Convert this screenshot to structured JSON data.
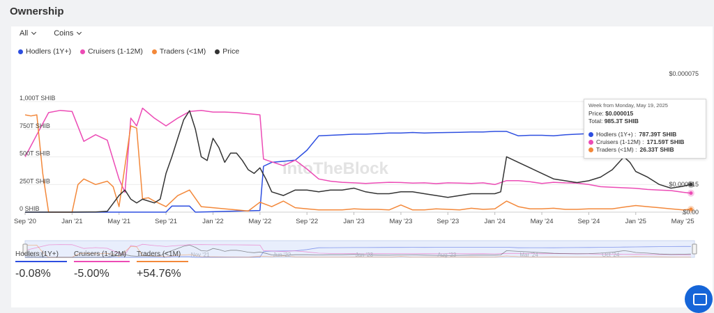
{
  "page": {
    "title": "Ownership"
  },
  "filters": {
    "asset": "All",
    "unit": "Coins"
  },
  "legend": [
    {
      "label": "Hodlers (1Y+)",
      "color": "#2d4ee0"
    },
    {
      "label": "Cruisers (1-12M)",
      "color": "#ec4bb5"
    },
    {
      "label": "Traders (<1M)",
      "color": "#f3883a"
    },
    {
      "label": "Price",
      "color": "#333333"
    }
  ],
  "watermark": "IntoTheBlock",
  "tooltip": {
    "week": "Week from Monday, May 19, 2025",
    "price_label": "Price:",
    "price_value": "$0.000015",
    "total_label": "Total:",
    "total_value": "985.3T SHIB",
    "rows": [
      {
        "label": "Hodlers (1Y+) :",
        "value": "787.39T SHIB",
        "color": "#2d4ee0"
      },
      {
        "label": "Cruisers (1-12M) :",
        "value": "171.59T SHIB",
        "color": "#ec4bb5"
      },
      {
        "label": "Traders (<1M) :",
        "value": "26.33T SHIB",
        "color": "#f3883a"
      }
    ]
  },
  "stats": [
    {
      "label": "Hodlers (1Y+)",
      "value": "-0.08%",
      "color": "#2d4ee0"
    },
    {
      "label": "Cruisers (1-12M)",
      "value": "-5.00%",
      "color": "#ec4bb5"
    },
    {
      "label": "Traders (<1M)",
      "value": "+54.76%",
      "color": "#f3883a"
    }
  ],
  "chart_data": {
    "type": "line",
    "x_tick_labels": [
      "Sep '20",
      "Jan '21",
      "May '21",
      "Sep '21",
      "Jan '22",
      "May '22",
      "Sep '22",
      "Jan '23",
      "May '23",
      "Sep '23",
      "Jan '24",
      "May '24",
      "Sep '24",
      "Jan '25",
      "May '25"
    ],
    "x_ticks": [
      0,
      4,
      8,
      12,
      16,
      20,
      24,
      28,
      32,
      36,
      40,
      44,
      48,
      52,
      56
    ],
    "x_range": [
      0,
      57
    ],
    "y_left": {
      "ticks": [
        0,
        250,
        500,
        750,
        1000
      ],
      "labels": [
        "0 SHIB",
        "250T SHIB",
        "500T SHIB",
        "750T SHIB",
        "1,000T SHIB"
      ],
      "range": [
        0,
        1000
      ]
    },
    "y_right": {
      "ticks": [
        0,
        1.5e-05,
        3e-05,
        4.5e-05,
        6e-05,
        7.5e-05
      ],
      "labels": [
        "$0.00",
        "$0.000015",
        "",
        "",
        "",
        "$0.000075"
      ],
      "range": [
        0,
        7.5e-05
      ]
    },
    "navigator_labels": [
      "Sep '20",
      "Apr '21",
      "Nov '21",
      "Jun '22",
      "Jan '23",
      "Aug '23",
      "Mar '24",
      "Oct '24"
    ],
    "navigator_x": [
      0,
      7,
      14,
      21,
      28,
      35,
      42,
      49
    ],
    "series": [
      {
        "name": "Hodlers (1Y+)",
        "color": "#2d4ee0",
        "axis": "left",
        "x": [
          0,
          8,
          12,
          12.5,
          14,
          14.5,
          20,
          20.3,
          21,
          22,
          23,
          24,
          25,
          26,
          27,
          28,
          29,
          30,
          31,
          32,
          33,
          34,
          35,
          36,
          37,
          38,
          39,
          40,
          41,
          42,
          43,
          44,
          45,
          46,
          47,
          48,
          49,
          50,
          51,
          52,
          53,
          54,
          55,
          56,
          56.7
        ],
        "y": [
          0,
          0,
          0,
          55,
          55,
          0,
          15,
          415,
          450,
          460,
          470,
          560,
          690,
          695,
          700,
          705,
          705,
          710,
          715,
          715,
          720,
          715,
          718,
          720,
          722,
          725,
          725,
          730,
          730,
          690,
          695,
          695,
          690,
          700,
          705,
          710,
          720,
          730,
          740,
          750,
          760,
          770,
          780,
          785,
          787
        ]
      },
      {
        "name": "Cruisers (1-12M)",
        "color": "#ec4bb5",
        "axis": "left",
        "x": [
          0,
          0.5,
          1,
          2,
          3,
          4,
          5,
          6,
          7,
          8,
          8.5,
          9,
          9.5,
          10,
          11,
          12,
          13,
          14,
          15,
          16,
          17,
          18,
          19,
          20,
          20.3,
          21,
          22,
          23,
          24,
          25,
          26,
          27,
          28,
          29,
          30,
          31,
          32,
          33,
          34,
          35,
          36,
          37,
          38,
          39,
          40,
          41,
          42,
          43,
          44,
          45,
          46,
          47,
          48,
          49,
          50,
          51,
          52,
          53,
          54,
          55,
          56,
          56.7
        ],
        "y": [
          500,
          600,
          700,
          900,
          920,
          910,
          640,
          700,
          650,
          300,
          180,
          850,
          780,
          940,
          850,
          780,
          850,
          910,
          920,
          905,
          905,
          900,
          890,
          880,
          480,
          455,
          420,
          470,
          390,
          300,
          280,
          270,
          265,
          260,
          265,
          270,
          268,
          262,
          265,
          258,
          265,
          262,
          260,
          265,
          250,
          285,
          285,
          275,
          260,
          270,
          265,
          262,
          250,
          230,
          225,
          220,
          215,
          205,
          200,
          195,
          180,
          172
        ]
      },
      {
        "name": "Traders (<1M)",
        "color": "#f3883a",
        "axis": "left",
        "x": [
          0,
          0.5,
          1,
          1.5,
          2,
          4,
          4.5,
          5,
          6,
          7,
          7.5,
          8,
          9,
          9.5,
          10,
          10.5,
          11,
          12,
          13,
          14,
          15,
          16,
          17,
          18,
          19,
          20,
          21,
          22,
          23,
          24,
          25,
          26,
          27,
          28,
          29,
          30,
          31,
          32,
          33,
          34,
          35,
          36,
          37,
          38,
          39,
          40,
          41,
          42,
          43,
          44,
          45,
          46,
          47,
          48,
          49,
          50,
          51,
          52,
          53,
          54,
          55,
          56,
          56.7
        ],
        "y": [
          880,
          870,
          880,
          350,
          0,
          0,
          250,
          300,
          250,
          280,
          230,
          50,
          780,
          760,
          120,
          130,
          100,
          50,
          150,
          200,
          50,
          40,
          30,
          20,
          10,
          90,
          50,
          100,
          40,
          30,
          20,
          20,
          20,
          30,
          25,
          25,
          20,
          65,
          20,
          20,
          30,
          25,
          20,
          35,
          25,
          30,
          100,
          50,
          30,
          30,
          35,
          25,
          25,
          30,
          30,
          30,
          45,
          60,
          50,
          40,
          30,
          20,
          26
        ]
      },
      {
        "name": "Price",
        "color": "#333333",
        "axis": "right",
        "x": [
          0,
          2,
          4,
          6,
          7,
          8,
          8.5,
          9,
          9.5,
          10,
          11,
          11.5,
          12,
          12.5,
          13,
          13.5,
          14,
          14.5,
          15,
          15.5,
          16,
          16.5,
          17,
          17.5,
          18,
          18.5,
          19,
          19.5,
          20,
          20.5,
          21,
          22,
          23,
          24,
          25,
          26,
          27,
          28,
          29,
          30,
          31,
          32,
          33,
          34,
          35,
          36,
          37,
          38,
          39,
          40,
          40.5,
          41,
          42,
          43,
          44,
          45,
          46,
          47,
          48,
          49,
          50,
          51,
          51.5,
          52,
          53,
          54,
          55,
          56,
          56.7
        ],
        "y": [
          0,
          0,
          0,
          1e-07,
          5e-07,
          9e-06,
          1.2e-05,
          7e-06,
          5e-06,
          7e-06,
          5e-06,
          7e-06,
          2.1e-05,
          3e-05,
          4e-05,
          5e-05,
          5.5e-05,
          4.5e-05,
          3e-05,
          2.8e-05,
          4e-05,
          3.5e-05,
          2.7e-05,
          3.2e-05,
          3.2e-05,
          2.8e-05,
          2.3e-05,
          2.1e-05,
          2.4e-05,
          1.8e-05,
          1.1e-05,
          9e-06,
          1.2e-05,
          1.2e-05,
          1.1e-05,
          1.2e-05,
          1.2e-05,
          1.3e-05,
          1.1e-05,
          1e-05,
          1e-05,
          1.1e-05,
          1.1e-05,
          1e-05,
          9e-06,
          8e-06,
          9e-06,
          1e-05,
          1e-05,
          1e-05,
          1.1e-05,
          3e-05,
          2.7e-05,
          2.4e-05,
          2.1e-05,
          1.8e-05,
          1.7e-05,
          1.6e-05,
          1.7e-05,
          1.9e-05,
          2.3e-05,
          3e-05,
          2.7e-05,
          2.2e-05,
          1.9e-05,
          1.5e-05,
          1.3e-05,
          1.4e-05,
          1.5e-05
        ]
      }
    ]
  }
}
